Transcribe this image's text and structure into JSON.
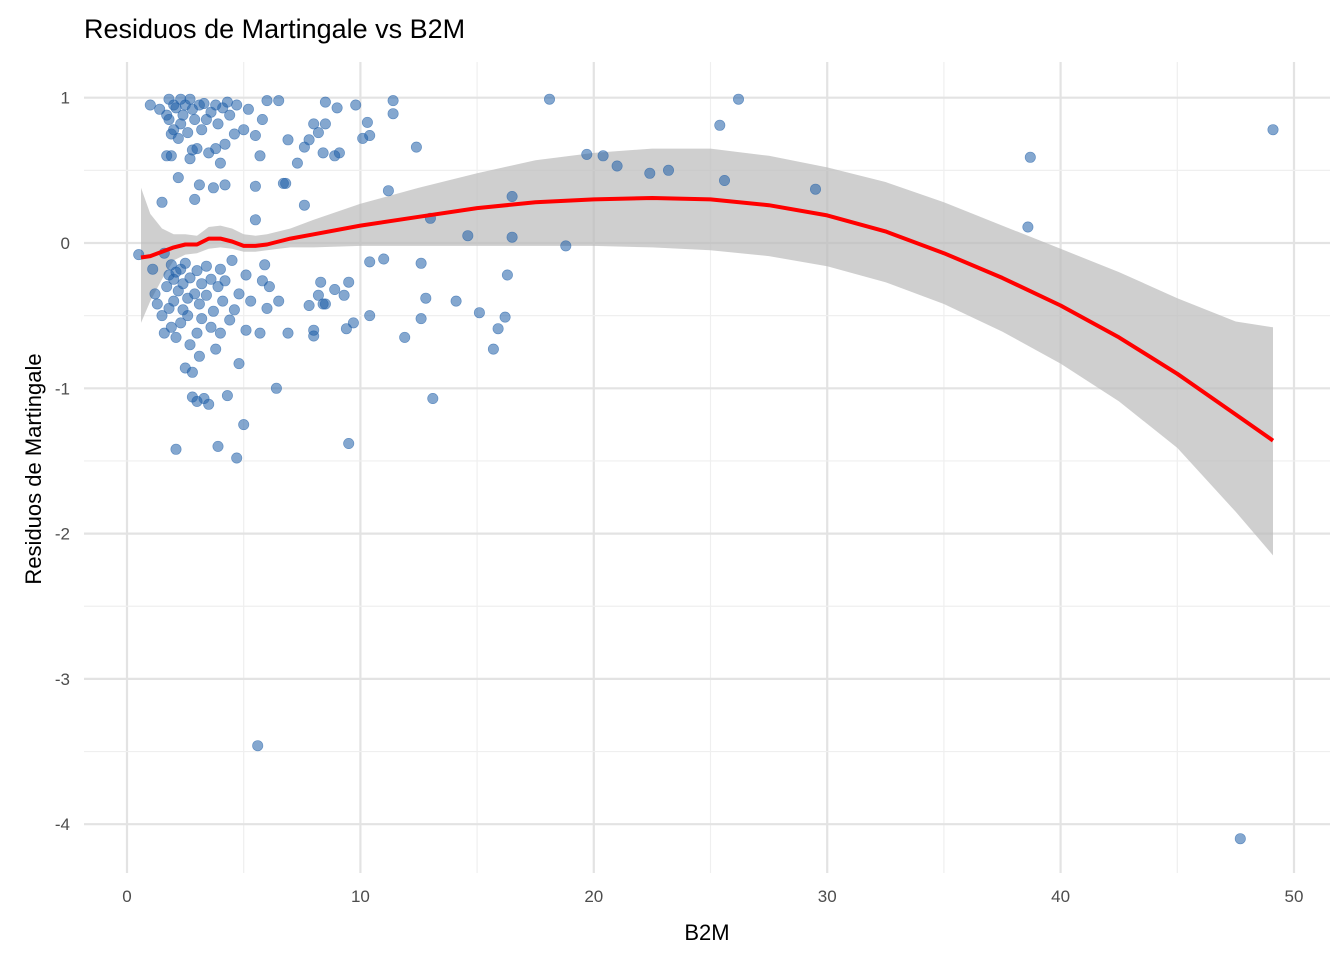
{
  "chart_data": {
    "type": "scatter",
    "title": "Residuos de Martingale vs B2M",
    "xlabel": "B2M",
    "ylabel": "Residuos de Martingale",
    "xlim": [
      -2,
      51
    ],
    "ylim": [
      -4.3,
      1.25
    ],
    "x_ticks": [
      0,
      10,
      20,
      30,
      40,
      50
    ],
    "y_ticks": [
      -4,
      -3,
      -2,
      -1,
      0,
      1
    ],
    "x_tick_labels": [
      "0",
      "10",
      "20",
      "30",
      "40",
      "50"
    ],
    "y_tick_labels": [
      "-4",
      "-3",
      "-2",
      "-1",
      "0",
      "1"
    ],
    "grid": true,
    "legend": "none",
    "point_color": "#1f5fa8",
    "point_opacity": 0.55,
    "smooth_color": "#ff0000",
    "ribbon_color": "#bdbdbd",
    "points": [
      [
        0.5,
        -0.08
      ],
      [
        1.0,
        0.95
      ],
      [
        1.1,
        -0.18
      ],
      [
        1.2,
        -0.35
      ],
      [
        1.3,
        -0.42
      ],
      [
        1.4,
        0.92
      ],
      [
        1.5,
        0.28
      ],
      [
        1.5,
        -0.5
      ],
      [
        1.6,
        -0.62
      ],
      [
        1.6,
        -0.07
      ],
      [
        1.7,
        0.88
      ],
      [
        1.7,
        0.6
      ],
      [
        1.7,
        -0.3
      ],
      [
        1.8,
        0.99
      ],
      [
        1.8,
        0.85
      ],
      [
        1.8,
        -0.22
      ],
      [
        1.8,
        -0.45
      ],
      [
        1.9,
        0.75
      ],
      [
        1.9,
        -0.15
      ],
      [
        1.9,
        -0.58
      ],
      [
        1.9,
        0.6
      ],
      [
        2.0,
        0.95
      ],
      [
        2.0,
        0.78
      ],
      [
        2.0,
        -0.25
      ],
      [
        2.0,
        -0.4
      ],
      [
        2.1,
        0.93
      ],
      [
        2.1,
        -0.65
      ],
      [
        2.1,
        -1.42
      ],
      [
        2.1,
        -0.2
      ],
      [
        2.2,
        0.72
      ],
      [
        2.2,
        0.45
      ],
      [
        2.2,
        -0.33
      ],
      [
        2.3,
        0.99
      ],
      [
        2.3,
        0.82
      ],
      [
        2.3,
        -0.18
      ],
      [
        2.3,
        -0.55
      ],
      [
        2.4,
        0.88
      ],
      [
        2.4,
        -0.28
      ],
      [
        2.4,
        -0.46
      ],
      [
        2.5,
        0.95
      ],
      [
        2.5,
        -0.86
      ],
      [
        2.5,
        -0.14
      ],
      [
        2.6,
        0.76
      ],
      [
        2.6,
        -0.38
      ],
      [
        2.6,
        -0.5
      ],
      [
        2.7,
        0.99
      ],
      [
        2.7,
        0.58
      ],
      [
        2.7,
        -0.24
      ],
      [
        2.7,
        -0.7
      ],
      [
        2.8,
        0.92
      ],
      [
        2.8,
        0.64
      ],
      [
        2.8,
        -0.89
      ],
      [
        2.8,
        -1.06
      ],
      [
        2.9,
        0.3
      ],
      [
        2.9,
        0.85
      ],
      [
        2.9,
        -0.35
      ],
      [
        3.0,
        0.65
      ],
      [
        3.0,
        -0.19
      ],
      [
        3.0,
        -0.62
      ],
      [
        3.0,
        -1.09
      ],
      [
        3.1,
        0.95
      ],
      [
        3.1,
        0.4
      ],
      [
        3.1,
        -0.42
      ],
      [
        3.1,
        -0.78
      ],
      [
        3.2,
        0.78
      ],
      [
        3.2,
        -0.28
      ],
      [
        3.2,
        -0.52
      ],
      [
        3.3,
        0.96
      ],
      [
        3.3,
        -1.07
      ],
      [
        3.4,
        0.85
      ],
      [
        3.4,
        -0.16
      ],
      [
        3.4,
        -0.36
      ],
      [
        3.5,
        0.62
      ],
      [
        3.5,
        -1.11
      ],
      [
        3.6,
        0.9
      ],
      [
        3.6,
        -0.25
      ],
      [
        3.6,
        -0.58
      ],
      [
        3.7,
        0.38
      ],
      [
        3.7,
        -0.47
      ],
      [
        3.8,
        0.95
      ],
      [
        3.8,
        0.65
      ],
      [
        3.8,
        -0.73
      ],
      [
        3.9,
        -1.4
      ],
      [
        3.9,
        0.82
      ],
      [
        3.9,
        -0.3
      ],
      [
        4.0,
        0.55
      ],
      [
        4.0,
        -0.62
      ],
      [
        4.0,
        -0.18
      ],
      [
        4.1,
        0.93
      ],
      [
        4.1,
        -0.4
      ],
      [
        4.2,
        0.4
      ],
      [
        4.2,
        0.68
      ],
      [
        4.2,
        -0.26
      ],
      [
        4.3,
        -1.05
      ],
      [
        4.3,
        0.97
      ],
      [
        4.4,
        -0.53
      ],
      [
        4.4,
        0.88
      ],
      [
        4.5,
        -0.12
      ],
      [
        4.6,
        0.75
      ],
      [
        4.6,
        -0.46
      ],
      [
        4.7,
        -1.48
      ],
      [
        4.7,
        0.95
      ],
      [
        4.8,
        -0.83
      ],
      [
        4.8,
        -0.35
      ],
      [
        5.0,
        -1.25
      ],
      [
        5.0,
        0.78
      ],
      [
        5.1,
        -0.6
      ],
      [
        5.1,
        -0.22
      ],
      [
        5.2,
        0.92
      ],
      [
        5.3,
        -0.4
      ],
      [
        5.5,
        0.16
      ],
      [
        5.5,
        0.74
      ],
      [
        5.5,
        0.39
      ],
      [
        5.6,
        -3.46
      ],
      [
        5.7,
        -0.62
      ],
      [
        5.7,
        0.6
      ],
      [
        5.8,
        -0.26
      ],
      [
        5.8,
        0.85
      ],
      [
        5.9,
        -0.15
      ],
      [
        6.0,
        0.98
      ],
      [
        6.0,
        -0.45
      ],
      [
        6.1,
        -0.3
      ],
      [
        6.4,
        -1.0
      ],
      [
        6.5,
        -0.4
      ],
      [
        6.5,
        0.98
      ],
      [
        6.7,
        0.41
      ],
      [
        6.8,
        0.41
      ],
      [
        6.9,
        -0.62
      ],
      [
        6.9,
        0.71
      ],
      [
        7.3,
        0.55
      ],
      [
        7.6,
        0.66
      ],
      [
        7.6,
        0.26
      ],
      [
        7.8,
        -0.43
      ],
      [
        7.8,
        0.71
      ],
      [
        8.0,
        -0.6
      ],
      [
        8.0,
        -0.64
      ],
      [
        8.0,
        0.82
      ],
      [
        8.2,
        0.76
      ],
      [
        8.2,
        -0.36
      ],
      [
        8.3,
        -0.27
      ],
      [
        8.4,
        -0.42
      ],
      [
        8.4,
        0.62
      ],
      [
        8.5,
        -0.42
      ],
      [
        8.5,
        0.82
      ],
      [
        8.5,
        0.97
      ],
      [
        8.9,
        -0.32
      ],
      [
        8.9,
        0.6
      ],
      [
        9.0,
        0.93
      ],
      [
        9.1,
        0.62
      ],
      [
        9.3,
        -0.36
      ],
      [
        9.4,
        -0.59
      ],
      [
        9.5,
        -0.27
      ],
      [
        9.5,
        -1.38
      ],
      [
        9.7,
        -0.55
      ],
      [
        9.8,
        0.95
      ],
      [
        10.1,
        0.72
      ],
      [
        10.3,
        0.83
      ],
      [
        10.4,
        0.74
      ],
      [
        10.4,
        -0.13
      ],
      [
        10.4,
        -0.5
      ],
      [
        11.0,
        -0.11
      ],
      [
        11.2,
        0.36
      ],
      [
        11.4,
        0.98
      ],
      [
        11.4,
        0.89
      ],
      [
        11.9,
        -0.65
      ],
      [
        12.4,
        0.66
      ],
      [
        12.6,
        -0.14
      ],
      [
        12.6,
        -0.52
      ],
      [
        12.8,
        -0.38
      ],
      [
        13.0,
        0.17
      ],
      [
        13.1,
        -1.07
      ],
      [
        14.1,
        -0.4
      ],
      [
        14.6,
        0.05
      ],
      [
        15.1,
        -0.48
      ],
      [
        15.7,
        -0.73
      ],
      [
        15.9,
        -0.59
      ],
      [
        16.2,
        -0.51
      ],
      [
        16.3,
        -0.22
      ],
      [
        16.5,
        0.32
      ],
      [
        16.5,
        0.04
      ],
      [
        18.1,
        0.99
      ],
      [
        18.8,
        -0.02
      ],
      [
        19.7,
        0.61
      ],
      [
        20.4,
        0.6
      ],
      [
        21.0,
        0.53
      ],
      [
        22.4,
        0.48
      ],
      [
        23.2,
        0.5
      ],
      [
        25.4,
        0.81
      ],
      [
        25.6,
        0.43
      ],
      [
        26.2,
        0.99
      ],
      [
        29.5,
        0.37
      ],
      [
        38.6,
        0.11
      ],
      [
        38.7,
        0.59
      ],
      [
        47.7,
        -4.1
      ],
      [
        49.1,
        0.78
      ]
    ],
    "smooth": {
      "x": [
        0.6,
        1.0,
        1.5,
        2.0,
        2.5,
        3.0,
        3.5,
        4.0,
        4.5,
        5.0,
        5.5,
        6.0,
        6.5,
        7.0,
        8.0,
        10.0,
        12.5,
        15.0,
        17.5,
        20.0,
        22.5,
        25.0,
        27.5,
        30.0,
        32.5,
        35.0,
        37.5,
        40.0,
        42.5,
        45.0,
        47.5,
        49.1
      ],
      "y": [
        -0.1,
        -0.09,
        -0.06,
        -0.03,
        -0.01,
        -0.01,
        0.03,
        0.03,
        0.01,
        -0.02,
        -0.02,
        -0.01,
        0.01,
        0.03,
        0.06,
        0.12,
        0.18,
        0.24,
        0.28,
        0.3,
        0.31,
        0.3,
        0.26,
        0.19,
        0.08,
        -0.07,
        -0.24,
        -0.43,
        -0.65,
        -0.9,
        -1.18,
        -1.36
      ],
      "lower": [
        -0.55,
        -0.4,
        -0.25,
        -0.12,
        -0.08,
        -0.07,
        -0.04,
        -0.03,
        -0.04,
        -0.06,
        -0.06,
        -0.05,
        -0.04,
        -0.03,
        -0.03,
        -0.02,
        -0.02,
        -0.02,
        -0.02,
        -0.02,
        -0.03,
        -0.05,
        -0.09,
        -0.16,
        -0.27,
        -0.42,
        -0.61,
        -0.83,
        -1.09,
        -1.41,
        -1.85,
        -2.15
      ],
      "upper": [
        0.38,
        0.2,
        0.1,
        0.06,
        0.06,
        0.05,
        0.11,
        0.12,
        0.1,
        0.06,
        0.05,
        0.06,
        0.08,
        0.1,
        0.16,
        0.27,
        0.38,
        0.48,
        0.57,
        0.62,
        0.65,
        0.65,
        0.6,
        0.52,
        0.42,
        0.28,
        0.12,
        -0.04,
        -0.2,
        -0.38,
        -0.54,
        -0.58
      ]
    }
  }
}
